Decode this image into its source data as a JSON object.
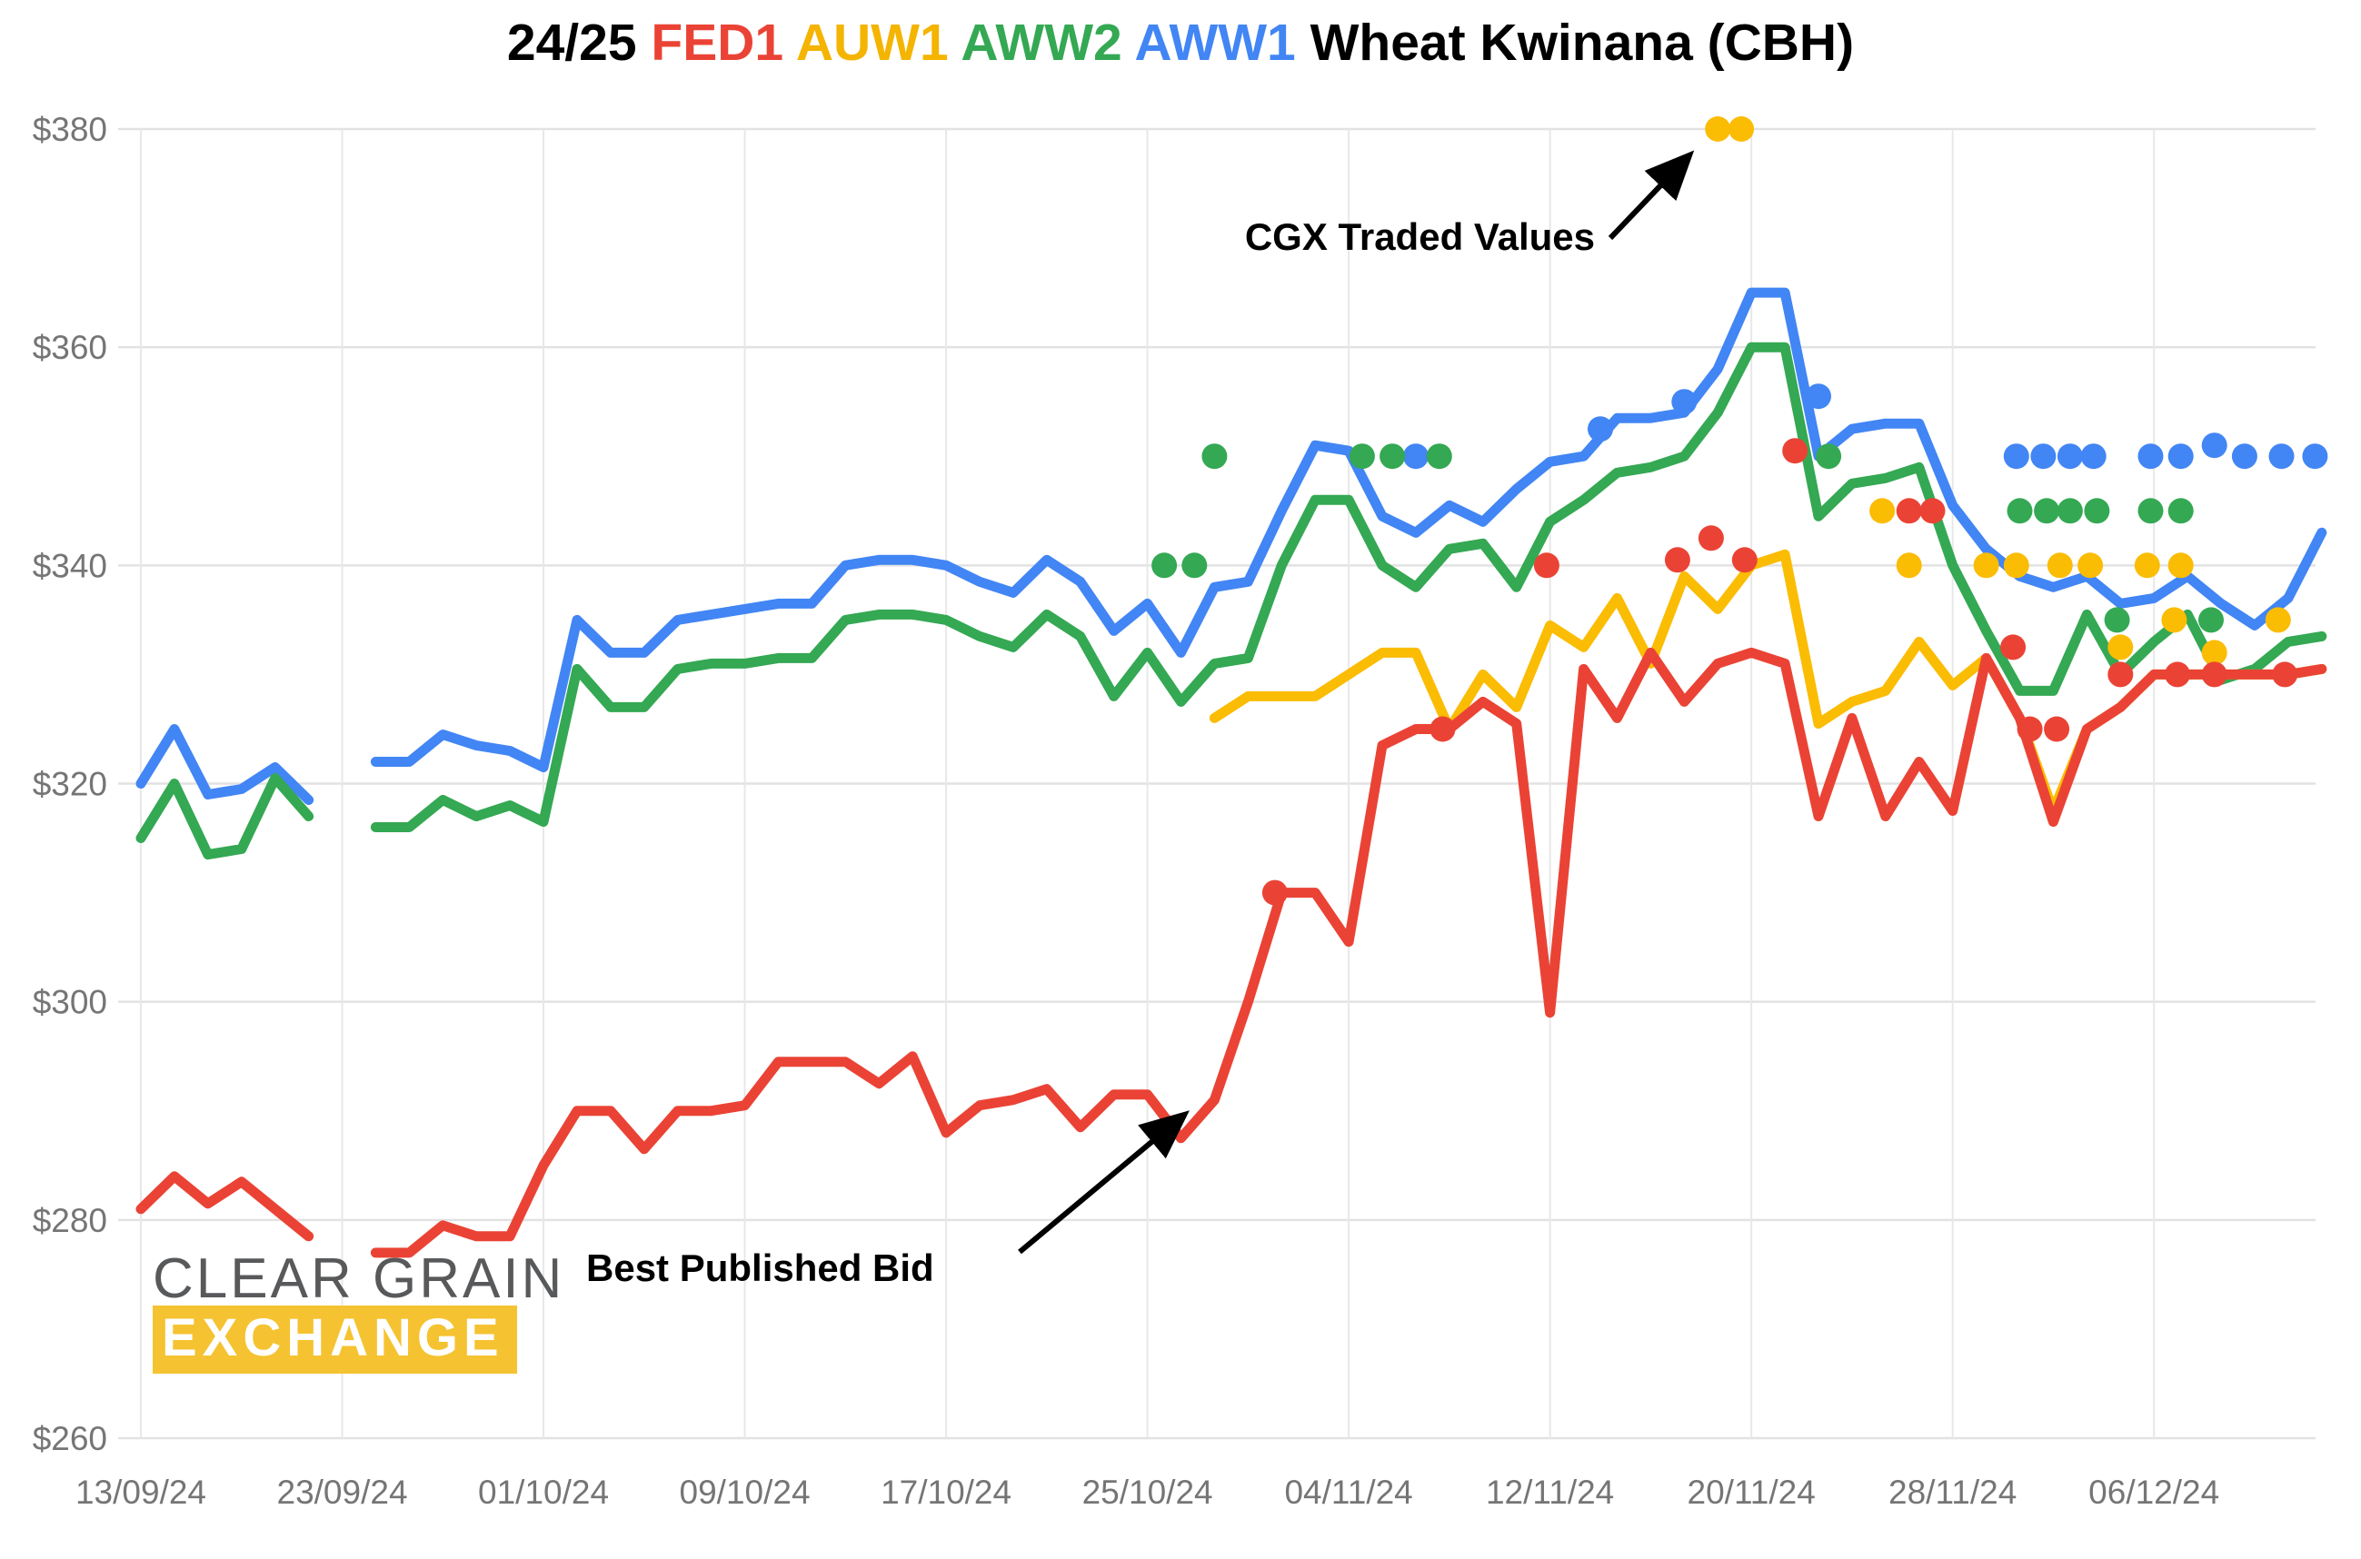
{
  "title": {
    "parts": [
      {
        "text": "24/25 ",
        "color": "#000000"
      },
      {
        "text": "FED1 ",
        "color": "#EA4335"
      },
      {
        "text": "AUW1 ",
        "color": "#F4B400"
      },
      {
        "text": "AWW2 ",
        "color": "#34A853"
      },
      {
        "text": "AWW1 ",
        "color": "#4285F4"
      },
      {
        "text": "Wheat Kwinana (CBH)",
        "color": "#000000"
      }
    ]
  },
  "annotations": {
    "traded": "CGX Traded Values",
    "bid": "Best Published Bid"
  },
  "logo": {
    "line1": "CLEAR GRAIN",
    "line2": "EXCHANGE"
  },
  "chart_data": {
    "type": "line",
    "title": "24/25 FED1 AUW1 AWW2 AWW1 Wheat Kwinana (CBH)",
    "x_axis": {
      "kind": "business-days",
      "tick_interval_days": 6,
      "tick_labels": [
        "13/09/24",
        "23/09/24",
        "01/10/24",
        "09/10/24",
        "17/10/24",
        "25/10/24",
        "04/11/24",
        "12/11/24",
        "20/11/24",
        "28/11/24",
        "06/12/24"
      ]
    },
    "y_axis": {
      "min": 260,
      "max": 380,
      "step": 20,
      "tick_labels": [
        "$260",
        "$280",
        "$300",
        "$320",
        "$340",
        "$360",
        "$380"
      ]
    },
    "grid": true,
    "legend": "in-title",
    "series": [
      {
        "id": "AWW1",
        "name": "AWW1 best published bid",
        "color": "#4285F4",
        "values": [
          320,
          325,
          319,
          319.5,
          321.5,
          318.5,
          null,
          322,
          322,
          324.5,
          323.5,
          323,
          321.5,
          335,
          332,
          332,
          335,
          335.5,
          336,
          336.5,
          336.5,
          340,
          340.5,
          340.5,
          340,
          338.5,
          337.5,
          340.5,
          338.5,
          334,
          336.5,
          332,
          338,
          338.5,
          345,
          351,
          350.5,
          344.5,
          343,
          345.5,
          344,
          347,
          349.5,
          350,
          353.5,
          353.5,
          354,
          358,
          365,
          365,
          350,
          352.5,
          353,
          353,
          345.5,
          341.5,
          339,
          338,
          339,
          336.5,
          337,
          339,
          336.5,
          334.5,
          337,
          343
        ]
      },
      {
        "id": "AWW2",
        "name": "AWW2 best published bid",
        "color": "#34A853",
        "values": [
          315,
          320,
          313.5,
          314,
          320.5,
          317,
          null,
          316,
          316,
          318.5,
          317,
          318,
          316.5,
          330.5,
          327,
          327,
          330.5,
          331,
          331,
          331.5,
          331.5,
          335,
          335.5,
          335.5,
          335,
          333.5,
          332.5,
          335.5,
          333.5,
          328,
          332,
          327.5,
          331,
          331.5,
          340,
          346,
          346,
          340,
          338,
          341.5,
          342,
          338,
          344,
          346,
          348.5,
          349,
          350,
          354,
          360,
          360,
          344.5,
          347.5,
          348,
          349,
          340,
          334,
          328.5,
          328.5,
          335.5,
          330,
          333,
          335.5,
          329.5,
          330.5,
          333,
          333.5
        ]
      },
      {
        "id": "AUW1",
        "name": "AUW1 best published bid",
        "color": "#FBBC04",
        "values": [
          null,
          null,
          null,
          null,
          null,
          null,
          null,
          null,
          null,
          null,
          null,
          null,
          null,
          null,
          null,
          null,
          null,
          null,
          null,
          null,
          null,
          null,
          null,
          null,
          null,
          null,
          null,
          null,
          null,
          null,
          null,
          null,
          326,
          328,
          328,
          328,
          330,
          332,
          332,
          325,
          330,
          327,
          334.5,
          332.5,
          337,
          331,
          339,
          336,
          340,
          341,
          325.5,
          327.5,
          328.5,
          333,
          329,
          331.5,
          326,
          317.5,
          325,
          327,
          330,
          330,
          330,
          330,
          330,
          330.5
        ]
      },
      {
        "id": "FED1",
        "name": "FED1 best published bid",
        "color": "#EA4335",
        "values": [
          281,
          284,
          281.5,
          283.5,
          281,
          278.5,
          null,
          277,
          277,
          279.5,
          278.5,
          278.5,
          285,
          290,
          290,
          286.5,
          290,
          290,
          290.5,
          294.5,
          294.5,
          294.5,
          292.5,
          295,
          288,
          290.5,
          291,
          292,
          288.5,
          291.5,
          291.5,
          287.5,
          291,
          300,
          310,
          310,
          305.5,
          323.5,
          325,
          325,
          327.5,
          325.5,
          299,
          330.5,
          326,
          332,
          327.5,
          331,
          332,
          331,
          317,
          326,
          317,
          322,
          317.5,
          331.5,
          326,
          316.5,
          325,
          327,
          330,
          330,
          330,
          330,
          330,
          330.5
        ]
      }
    ],
    "scatter": [
      {
        "id": "AWW1-traded",
        "name": "AWW1 CGX traded values",
        "color": "#4285F4",
        "points": [
          [
            38,
            350
          ],
          [
            43.5,
            352.5
          ],
          [
            46,
            355
          ],
          [
            50,
            355.5
          ],
          [
            55.9,
            350
          ],
          [
            56.7,
            350
          ],
          [
            57.5,
            350
          ],
          [
            58.2,
            350
          ],
          [
            59.9,
            350
          ],
          [
            60.8,
            350
          ],
          [
            61.8,
            351
          ],
          [
            62.7,
            350
          ],
          [
            63.8,
            350
          ],
          [
            64.8,
            350
          ]
        ]
      },
      {
        "id": "AWW2-traded",
        "name": "AWW2 CGX traded values",
        "color": "#34A853",
        "points": [
          [
            30.5,
            340
          ],
          [
            31.4,
            340
          ],
          [
            32,
            350
          ],
          [
            36.4,
            350
          ],
          [
            37.3,
            350
          ],
          [
            38.7,
            350
          ],
          [
            50.3,
            350
          ],
          [
            56,
            345
          ],
          [
            56.8,
            345
          ],
          [
            57.5,
            345
          ],
          [
            58.3,
            345
          ],
          [
            58.9,
            335
          ],
          [
            59.9,
            345
          ],
          [
            60.8,
            345
          ],
          [
            61.7,
            335
          ]
        ]
      },
      {
        "id": "AUW1-traded",
        "name": "AUW1 CGX traded values",
        "color": "#FBBC04",
        "points": [
          [
            47,
            380
          ],
          [
            47.7,
            380
          ],
          [
            51.9,
            345
          ],
          [
            52.7,
            340
          ],
          [
            55,
            340
          ],
          [
            55.9,
            340
          ],
          [
            57.2,
            340
          ],
          [
            58.1,
            340
          ],
          [
            59,
            332.5
          ],
          [
            59.8,
            340
          ],
          [
            60.6,
            335
          ],
          [
            60.8,
            340
          ],
          [
            61.8,
            332
          ],
          [
            63.7,
            335
          ]
        ]
      },
      {
        "id": "FED1-traded",
        "name": "FED1 CGX traded values",
        "color": "#EA4335",
        "points": [
          [
            33.8,
            310
          ],
          [
            38.8,
            325
          ],
          [
            41.9,
            340
          ],
          [
            45.8,
            340.5
          ],
          [
            46.8,
            342.5
          ],
          [
            47.8,
            340.5
          ],
          [
            49.3,
            350.5
          ],
          [
            52.7,
            345
          ],
          [
            53.4,
            345
          ],
          [
            55.8,
            332.5
          ],
          [
            56.3,
            325
          ],
          [
            57.1,
            325
          ],
          [
            59,
            330
          ],
          [
            60.7,
            330
          ],
          [
            61.8,
            330
          ],
          [
            63.9,
            330
          ]
        ]
      }
    ]
  }
}
